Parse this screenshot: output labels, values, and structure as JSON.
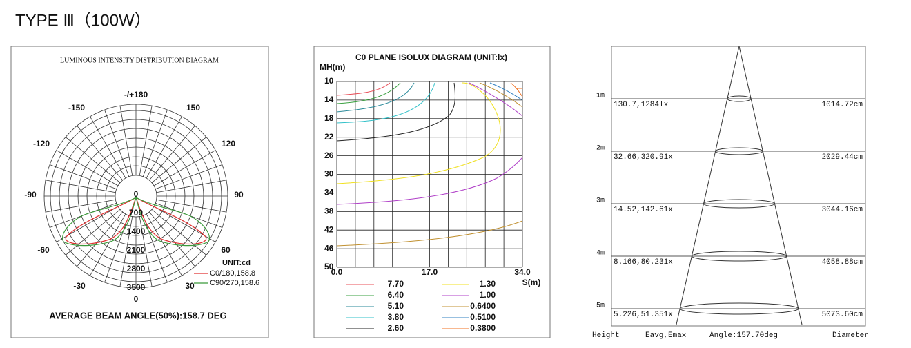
{
  "title": "TYPE Ⅲ（100W）",
  "intensity_diagram": {
    "title": "LUMINOUS INTENSITY DISTRIBUTION DIAGRAM",
    "angle_labels": [
      "-/+180",
      "-150",
      "150",
      "-120",
      "120",
      "-90",
      "90",
      "-60",
      "60",
      "-30",
      "30",
      "0"
    ],
    "radial_labels": [
      "0",
      "700",
      "1400",
      "2100",
      "2800",
      "3500"
    ],
    "unit": "UNIT:cd",
    "legend": [
      {
        "label": "C0/180,158.8",
        "color": "#e03030"
      },
      {
        "label": "C90/270,158.6",
        "color": "#3a9a3a"
      }
    ],
    "beam_angle": "AVERAGE BEAM ANGLE(50%):158.7 DEG"
  },
  "isolux_diagram": {
    "title": "C0 PLANE ISOLUX DIAGRAM (UNIT:lx)",
    "y_axis_title": "MH(m)",
    "y_labels": [
      "10",
      "14",
      "18",
      "22",
      "26",
      "30",
      "34",
      "38",
      "42",
      "46",
      "50"
    ],
    "x_labels": [
      "0.0",
      "17.0",
      "34.0"
    ],
    "x_axis_title": "S(m)",
    "legend": [
      {
        "label": "7.70",
        "color": "#e8505a"
      },
      {
        "label": "6.40",
        "color": "#3aa040"
      },
      {
        "label": "5.10",
        "color": "#2a8a9a"
      },
      {
        "label": "3.80",
        "color": "#30c0c8"
      },
      {
        "label": "2.60",
        "color": "#222222"
      },
      {
        "label": "1.30",
        "color": "#f0e020"
      },
      {
        "label": "1.00",
        "color": "#b040c8"
      },
      {
        "label": "0.6400",
        "color": "#c09030"
      },
      {
        "label": "0.5100",
        "color": "#3080c0"
      },
      {
        "label": "0.3800",
        "color": "#f07020"
      }
    ]
  },
  "cone_diagram": {
    "rows": [
      {
        "height": "1m",
        "illuminance": "130.7,1284lx",
        "diameter": "1014.72cm"
      },
      {
        "height": "2m",
        "illuminance": "32.66,320.91x",
        "diameter": "2029.44cm"
      },
      {
        "height": "3m",
        "illuminance": "14.52,142.61x",
        "diameter": "3044.16cm"
      },
      {
        "height": "4m",
        "illuminance": "8.166,80.231x",
        "diameter": "4058.88cm"
      },
      {
        "height": "5m",
        "illuminance": "5.226,51.351x",
        "diameter": "5073.60cm"
      }
    ],
    "footer": [
      "Height",
      "Eavg,Emax",
      "Angle:157.70deg",
      "Diameter"
    ]
  }
}
